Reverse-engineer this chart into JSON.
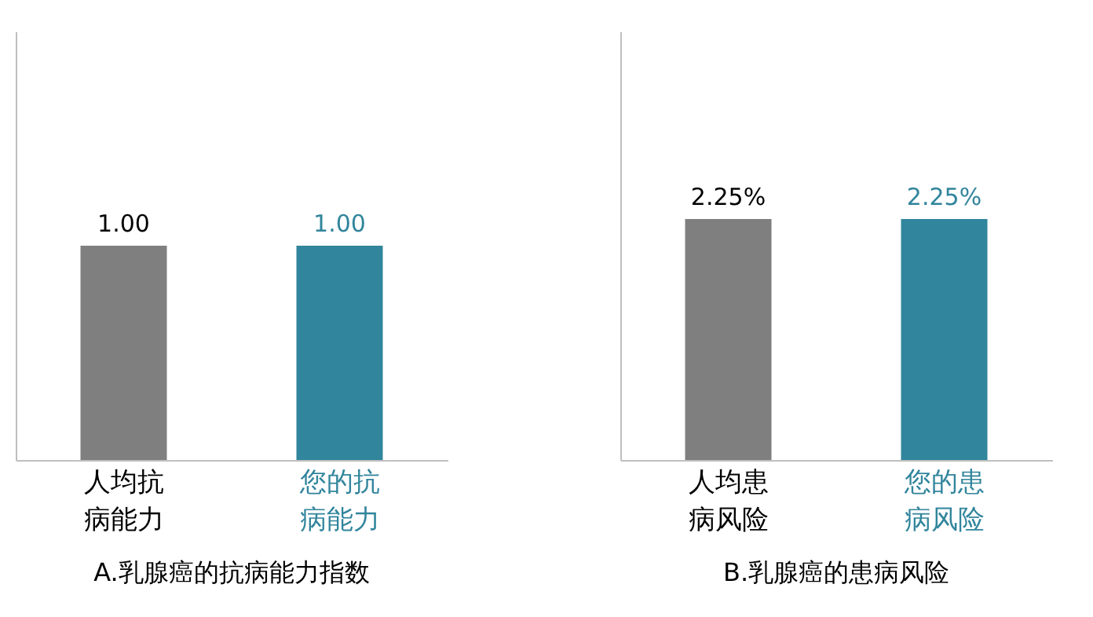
{
  "chart_data": [
    {
      "type": "bar",
      "title": "A.乳腺癌的抗病能力指数",
      "categories": [
        "人均抗病能力",
        "您的抗病能力"
      ],
      "values": [
        1.0,
        1.0
      ],
      "colors": [
        "#7f7f7f",
        "#31859c"
      ],
      "ylim": [
        0,
        2
      ],
      "tick_labels": "x",
      "value_labels": [
        "1.00",
        "1.00"
      ]
    },
    {
      "type": "bar",
      "title": "B.乳腺癌的患病风险",
      "categories": [
        "人均患病风险",
        "您的患病风险"
      ],
      "values": [
        2.25,
        2.25
      ],
      "colors": [
        "#7f7f7f",
        "#31859c"
      ],
      "ylim": [
        0,
        4
      ],
      "tick_labels": "x",
      "value_labels": [
        "2.25%",
        "2.25%"
      ]
    }
  ]
}
